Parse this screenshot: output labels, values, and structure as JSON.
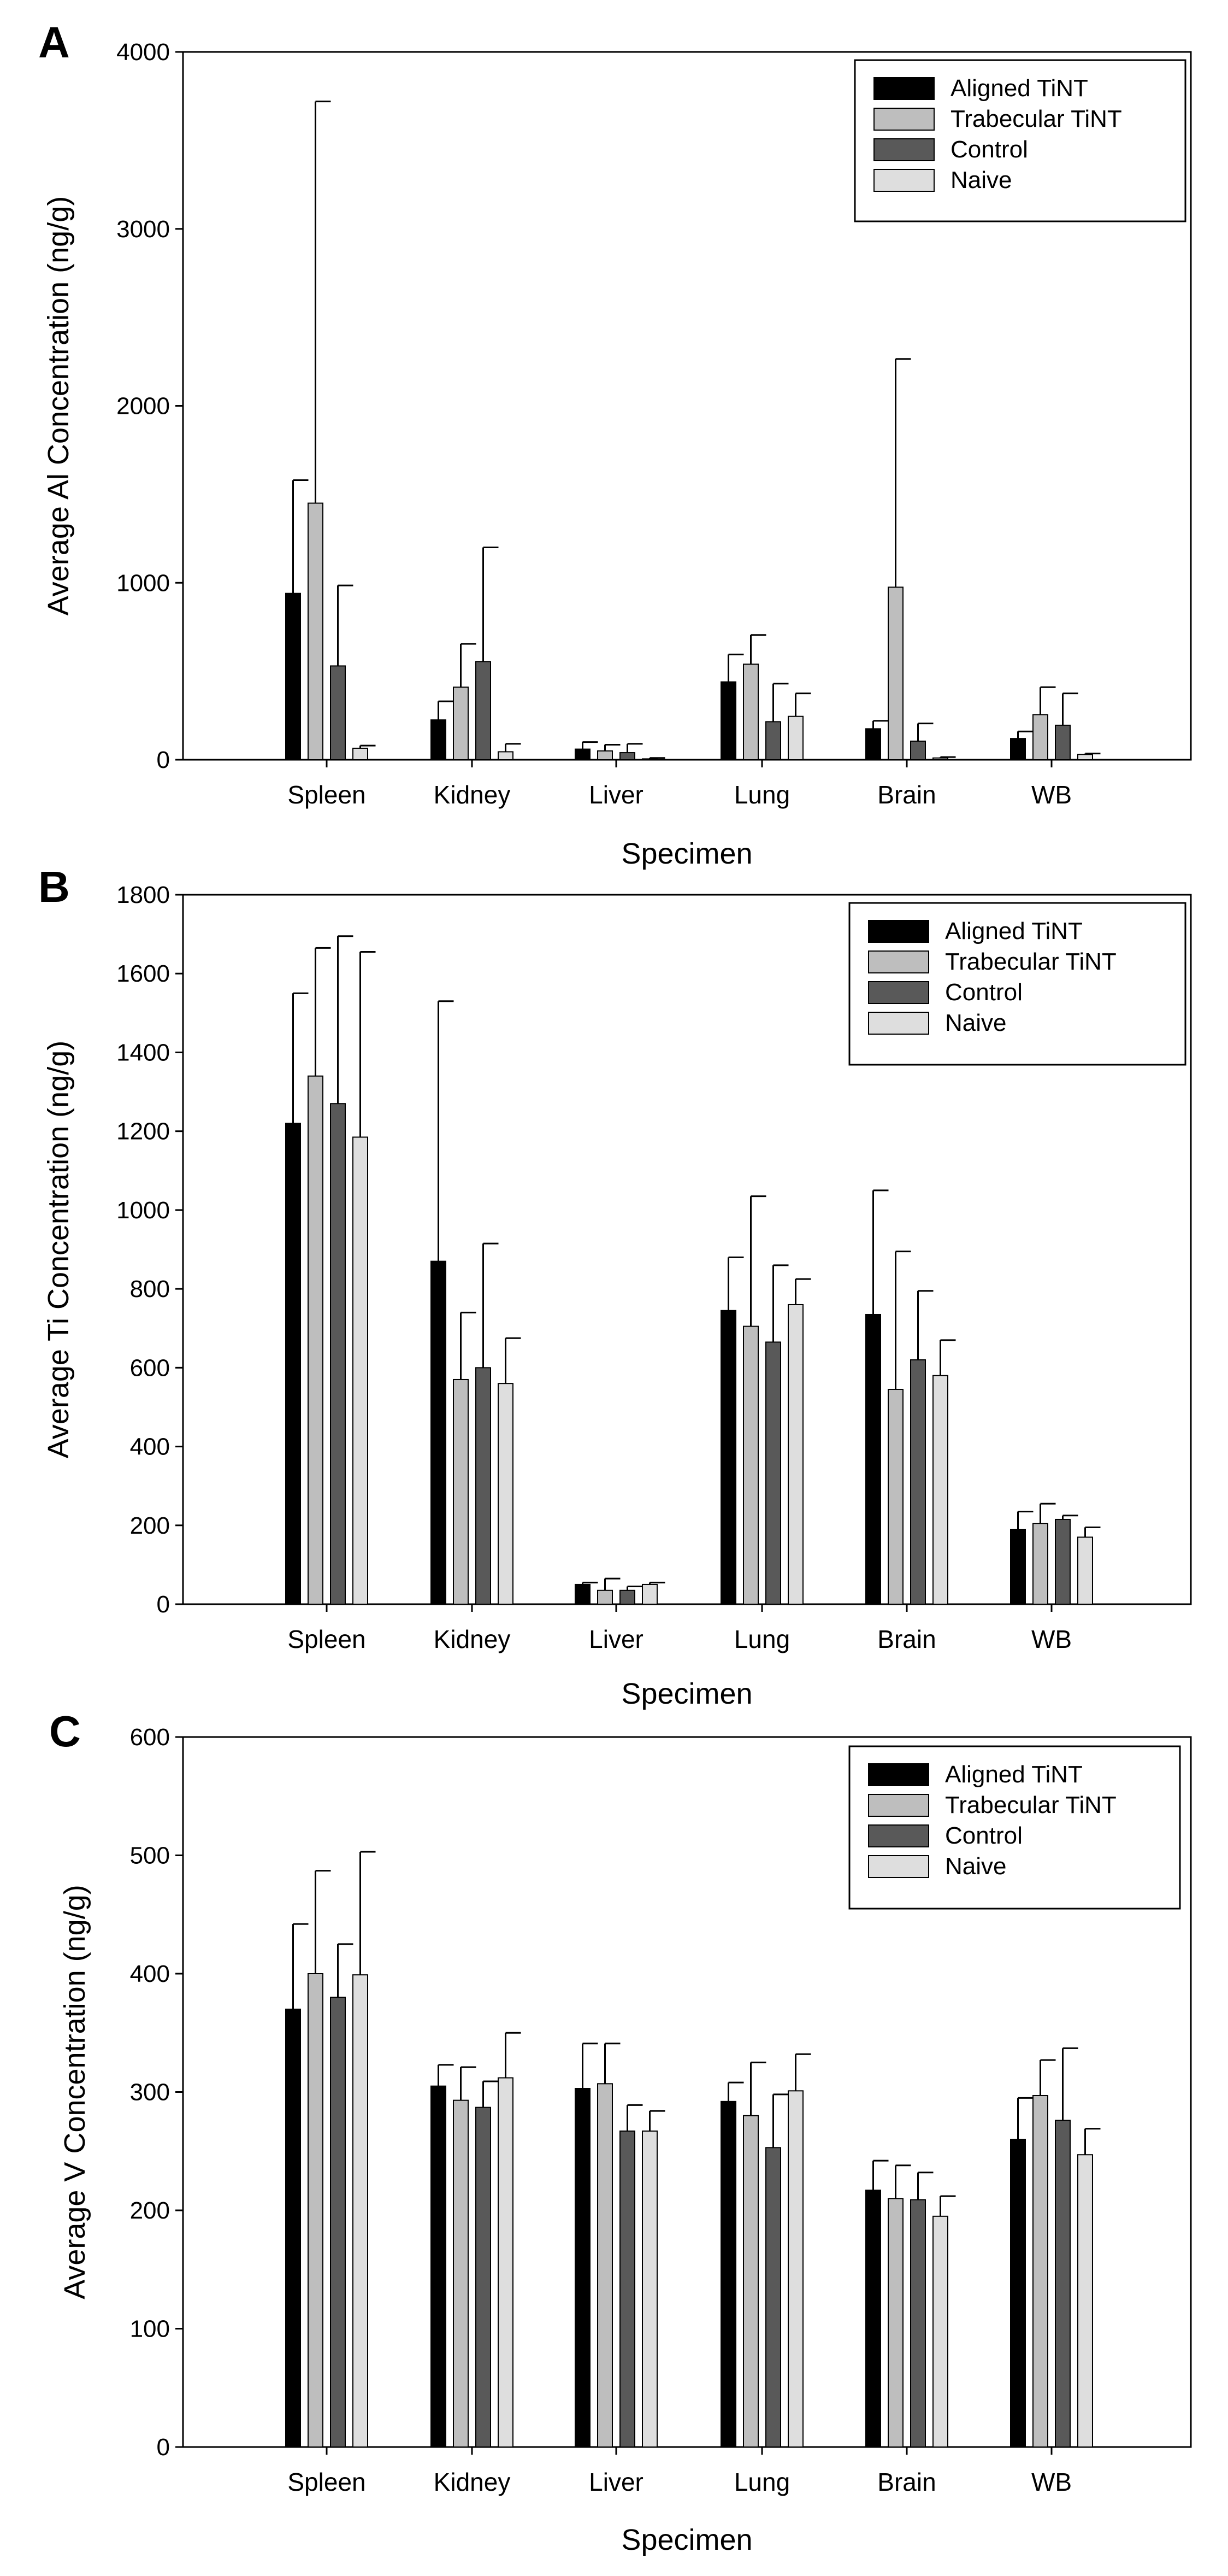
{
  "colors": {
    "series": [
      "#000000",
      "#bebebe",
      "#595959",
      "#dedede"
    ]
  },
  "chart_data": [
    {
      "panel": "A",
      "type": "bar",
      "xlabel": "Specimen",
      "ylabel": "Average Al Concentration (ng/g)",
      "ylim": [
        0,
        4000
      ],
      "yticks": [
        0,
        1000,
        2000,
        3000,
        4000
      ],
      "legend_position": "top-right",
      "categories": [
        "Spleen",
        "Kidney",
        "Liver",
        "Lung",
        "Brain",
        "WB"
      ],
      "series": [
        {
          "name": "Aligned TiNT",
          "values": [
            940,
            225,
            60,
            440,
            175,
            120
          ],
          "errors": [
            640,
            105,
            40,
            155,
            45,
            40
          ]
        },
        {
          "name": "Trabecular TiNT",
          "values": [
            1450,
            410,
            50,
            540,
            975,
            255
          ],
          "errors": [
            2270,
            245,
            35,
            165,
            1290,
            155
          ]
        },
        {
          "name": "Control",
          "values": [
            530,
            555,
            40,
            215,
            105,
            195
          ],
          "errors": [
            455,
            645,
            50,
            215,
            100,
            180
          ]
        },
        {
          "name": "Naive",
          "values": [
            65,
            45,
            5,
            245,
            10,
            30
          ],
          "errors": [
            15,
            45,
            5,
            130,
            5,
            5
          ]
        }
      ]
    },
    {
      "panel": "B",
      "type": "bar",
      "xlabel": "Specimen",
      "ylabel": "Average Ti Concentration (ng/g)",
      "ylim": [
        0,
        1800
      ],
      "yticks": [
        0,
        200,
        400,
        600,
        800,
        1000,
        1200,
        1400,
        1600,
        1800
      ],
      "legend_position": "top-right",
      "categories": [
        "Spleen",
        "Kidney",
        "Liver",
        "Lung",
        "Brain",
        "WB"
      ],
      "series": [
        {
          "name": "Aligned TiNT",
          "values": [
            1220,
            870,
            50,
            745,
            735,
            190
          ],
          "errors": [
            330,
            660,
            5,
            135,
            315,
            45
          ]
        },
        {
          "name": "Trabecular TiNT",
          "values": [
            1340,
            570,
            35,
            705,
            545,
            205
          ],
          "errors": [
            325,
            170,
            30,
            330,
            350,
            50
          ]
        },
        {
          "name": "Control",
          "values": [
            1270,
            600,
            35,
            665,
            620,
            215
          ],
          "errors": [
            425,
            315,
            10,
            195,
            175,
            10
          ]
        },
        {
          "name": "Naive",
          "values": [
            1185,
            560,
            50,
            760,
            580,
            170
          ],
          "errors": [
            470,
            115,
            5,
            65,
            90,
            25
          ]
        }
      ]
    },
    {
      "panel": "C",
      "type": "bar",
      "xlabel": "Specimen",
      "ylabel": "Average V Concentration (ng/g)",
      "ylim": [
        0,
        600
      ],
      "yticks": [
        0,
        100,
        200,
        300,
        400,
        500,
        600
      ],
      "legend_position": "top-right",
      "categories": [
        "Spleen",
        "Kidney",
        "Liver",
        "Lung",
        "Brain",
        "WB"
      ],
      "series": [
        {
          "name": "Aligned TiNT",
          "values": [
            370,
            305,
            303,
            292,
            217,
            260
          ],
          "errors": [
            72,
            18,
            38,
            16,
            25,
            35
          ]
        },
        {
          "name": "Trabecular TiNT",
          "values": [
            400,
            293,
            307,
            280,
            210,
            297
          ],
          "errors": [
            87,
            28,
            34,
            45,
            28,
            30
          ]
        },
        {
          "name": "Control",
          "values": [
            380,
            287,
            267,
            253,
            209,
            276
          ],
          "errors": [
            45,
            22,
            22,
            45,
            23,
            61
          ]
        },
        {
          "name": "Naive",
          "values": [
            399,
            312,
            267,
            301,
            195,
            247
          ],
          "errors": [
            104,
            38,
            17,
            31,
            17,
            22
          ]
        }
      ]
    }
  ]
}
